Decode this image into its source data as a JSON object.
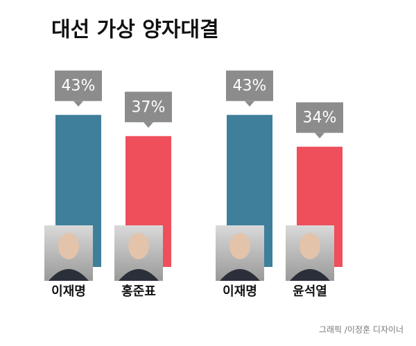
{
  "title": "대선 가상 양자대결",
  "credit": "그래픽 /이정훈 디자이너",
  "chart_data": [
    {
      "type": "bar",
      "categories": [
        "이재명",
        "홍준표"
      ],
      "values": [
        43,
        37
      ],
      "value_labels": [
        "43%",
        "37%"
      ],
      "colors": [
        "#3f7f9b",
        "#ee4f5b"
      ]
    },
    {
      "type": "bar",
      "categories": [
        "이재명",
        "윤석열"
      ],
      "values": [
        43,
        34
      ],
      "value_labels": [
        "43%",
        "34%"
      ],
      "colors": [
        "#3f7f9b",
        "#ee4f5b"
      ]
    }
  ]
}
